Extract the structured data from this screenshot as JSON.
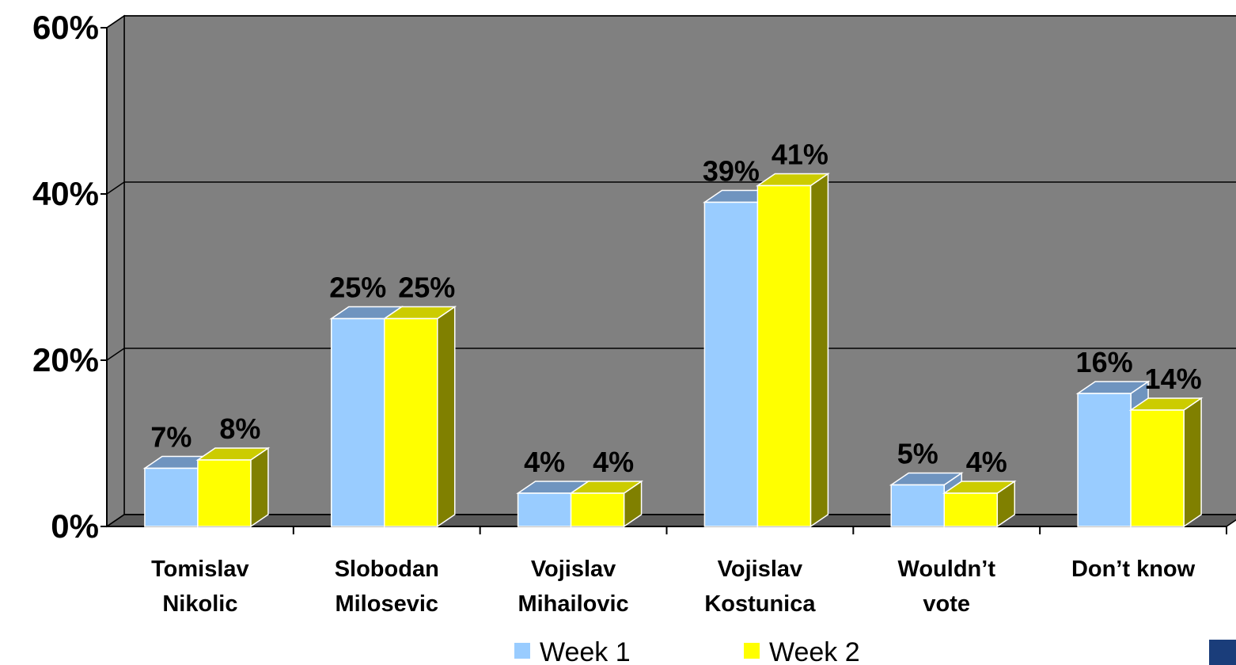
{
  "chart_data": {
    "type": "bar3d",
    "categories": [
      [
        "Tomislav",
        "Nikolic"
      ],
      [
        "Slobodan",
        "Milosevic"
      ],
      [
        "Vojislav",
        "Mihailovic"
      ],
      [
        "Vojislav",
        "Kostunica"
      ],
      [
        "Wouldn’t",
        "vote"
      ],
      [
        "Don’t know"
      ]
    ],
    "series": [
      {
        "name": "Week 1",
        "color": "#99ccff",
        "top_color": "#6f94bf",
        "values": [
          7,
          25,
          4,
          39,
          5,
          16
        ],
        "value_labels": [
          "7%",
          "25%",
          "4%",
          "39%",
          "5%",
          "16%"
        ]
      },
      {
        "name": "Week 2",
        "color": "#ffff00",
        "top_color": "#cccc00",
        "side_color": "#808000",
        "values": [
          8,
          25,
          4,
          41,
          4,
          14
        ],
        "value_labels": [
          "8%",
          "25%",
          "4%",
          "41%",
          "4%",
          "14%"
        ]
      }
    ],
    "ylim": [
      0,
      60
    ],
    "yticks": [
      {
        "value": 0,
        "label": "0%"
      },
      {
        "value": 20,
        "label": "20%"
      },
      {
        "value": 40,
        "label": "40%"
      },
      {
        "value": 60,
        "label": "60%"
      }
    ],
    "grid": true,
    "wall_color": "#808080"
  }
}
